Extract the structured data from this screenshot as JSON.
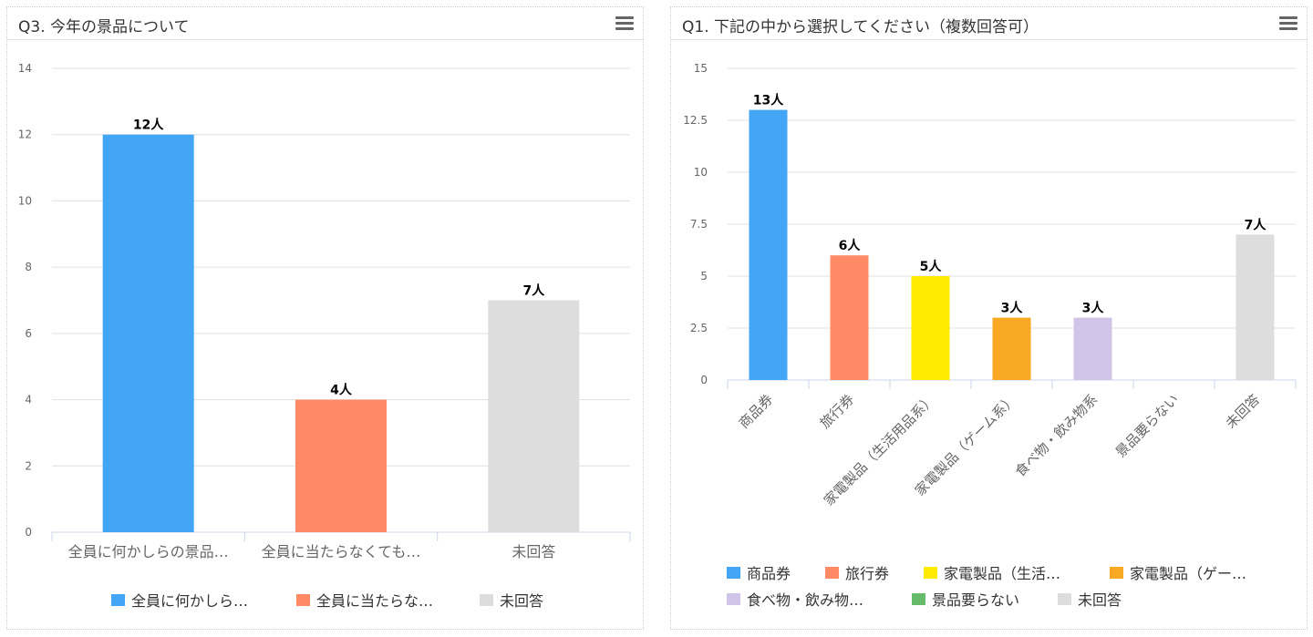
{
  "chart_data": [
    {
      "type": "bar",
      "title": "Q3. 今年の景品について",
      "categories": [
        "全員に何かしらの景品…",
        "全員に当たらなくても…",
        "未回答"
      ],
      "legend": [
        "全員に何かしら…",
        "全員に当たらな…",
        "未回答"
      ],
      "values": [
        12,
        4,
        7
      ],
      "data_labels": [
        "12人",
        "4人",
        "7人"
      ],
      "colors": [
        "#42a5f5",
        "#ff8a65",
        "#dddddd"
      ],
      "ylim": [
        0,
        14
      ],
      "yticks": [
        "0",
        "2",
        "4",
        "6",
        "8",
        "10",
        "12",
        "14"
      ],
      "grid": true,
      "legend_position": "bottom"
    },
    {
      "type": "bar",
      "title": "Q1. 下記の中から選択してください（複数回答可）",
      "categories": [
        "商品券",
        "旅行券",
        "家電製品（生活用品系）",
        "家電製品（ゲーム系）",
        "食べ物・飲み物系",
        "景品要らない",
        "未回答"
      ],
      "legend": [
        "商品券",
        "旅行券",
        "家電製品（生活…",
        "家電製品（ゲー…",
        "食べ物・飲み物…",
        "景品要らない",
        "未回答"
      ],
      "values": [
        13,
        6,
        5,
        3,
        3,
        0,
        7
      ],
      "data_labels": [
        "13人",
        "6人",
        "5人",
        "3人",
        "3人",
        "",
        "7人"
      ],
      "colors": [
        "#42a5f5",
        "#ff8a65",
        "#ffea00",
        "#f9a825",
        "#d1c4e9",
        "#66bb6a",
        "#dddddd"
      ],
      "ylim": [
        0,
        15
      ],
      "yticks": [
        "0",
        "2.5",
        "5",
        "7.5",
        "10",
        "12.5",
        "15"
      ],
      "grid": true,
      "legend_position": "bottom"
    }
  ]
}
